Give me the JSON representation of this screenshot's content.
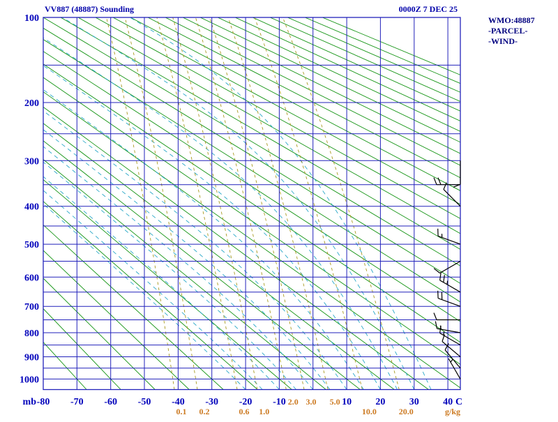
{
  "chart_data": {
    "type": "line",
    "variant": "stuve-sounding",
    "title": "VV887 (48887) Sounding",
    "valid_time": "0000Z  7 DEC 25",
    "legend": {
      "wmo": "WMO:48887",
      "parcel": "-PARCEL-",
      "wind": "-WIND-"
    },
    "pressure_axis": {
      "unit": "mb",
      "ticks": [
        100,
        200,
        300,
        400,
        500,
        600,
        700,
        800,
        900,
        1000
      ],
      "line_interval_mb": 50,
      "range": [
        100,
        1050
      ],
      "scale": "pressure^0.286"
    },
    "temp_axis": {
      "unit": "C",
      "ticks": [
        -80,
        -70,
        -60,
        -50,
        -40,
        -30,
        -20,
        -10,
        10,
        20,
        30,
        40
      ],
      "range": [
        -80,
        43.7
      ]
    },
    "mixing_ratio": {
      "unit": "g/kg",
      "values": [
        {
          "value": 0.1,
          "label": "0.1",
          "row": 2
        },
        {
          "value": 0.2,
          "label": "0.2",
          "row": 2
        },
        {
          "value": 0.6,
          "label": "0.6",
          "row": 2
        },
        {
          "value": 1.0,
          "label": "1.0",
          "row": 2
        },
        {
          "value": 2.0,
          "label": "2.0",
          "row": 1
        },
        {
          "value": 3.0,
          "label": "3.0",
          "row": 1
        },
        {
          "value": 5.0,
          "label": "5.0",
          "row": 1
        },
        {
          "value": 10.0,
          "label": "10.0",
          "row": 2
        },
        {
          "value": 20.0,
          "label": "20.0",
          "row": 2
        }
      ]
    },
    "dry_adiabats_theta_c": {
      "start": -70,
      "end": 260,
      "step": 10
    },
    "moist_adiabats_thetaw_c": {
      "start": -20,
      "end": 35,
      "step": 5
    },
    "wind_barbs": [
      {
        "p_mb": 300,
        "dir_deg": 180,
        "speed_kt": 10
      },
      {
        "p_mb": 350,
        "dir_deg": 270,
        "speed_kt": 20
      },
      {
        "p_mb": 400,
        "dir_deg": 315,
        "speed_kt": 10
      },
      {
        "p_mb": 500,
        "dir_deg": 290,
        "speed_kt": 15
      },
      {
        "p_mb": 550,
        "dir_deg": 240,
        "speed_kt": 10
      },
      {
        "p_mb": 650,
        "dir_deg": 300,
        "speed_kt": 25
      },
      {
        "p_mb": 700,
        "dir_deg": 290,
        "speed_kt": 20
      },
      {
        "p_mb": 750,
        "dir_deg": 270,
        "speed_kt": 10
      },
      {
        "p_mb": 800,
        "dir_deg": 280,
        "speed_kt": 15
      },
      {
        "p_mb": 850,
        "dir_deg": 300,
        "speed_kt": 15
      },
      {
        "p_mb": 900,
        "dir_deg": 310,
        "speed_kt": 10
      },
      {
        "p_mb": 950,
        "dir_deg": 320,
        "speed_kt": 10
      },
      {
        "p_mb": 1000,
        "dir_deg": 330,
        "speed_kt": 5
      }
    ],
    "colors": {
      "background": "#ffffff",
      "grid": "#2222bb",
      "text_blue": "#0000bb",
      "title": "#0000aa",
      "legend": "#000080",
      "dry_adiabat": "#149414",
      "moist_adiabat": "#2aa8c8",
      "mixing_ratio": "#a89a20",
      "mixing_label": "#cc7a22",
      "wind": "#000000"
    }
  }
}
